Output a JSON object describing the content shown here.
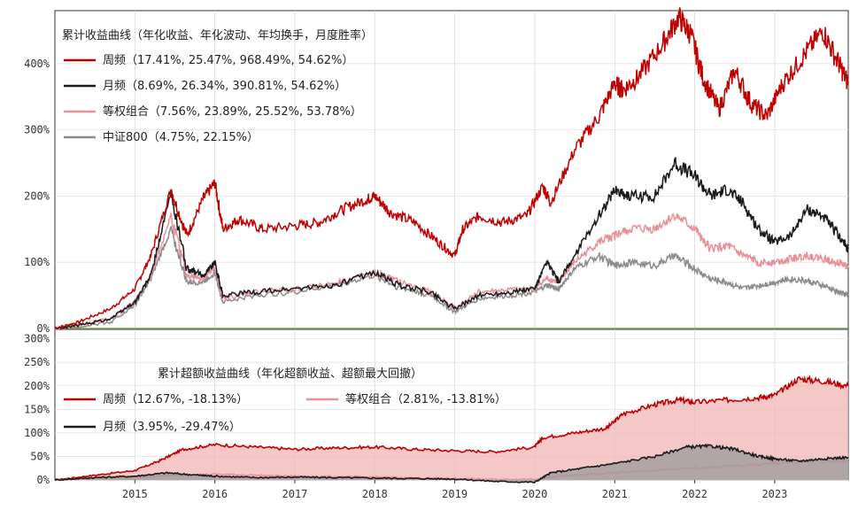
{
  "chart_data": [
    {
      "type": "line",
      "title": "",
      "xlabel": "",
      "ylabel": "",
      "x_tick_labels": [
        "2015",
        "2016",
        "2017",
        "2018",
        "2019",
        "2020",
        "2021",
        "2022",
        "2023"
      ],
      "y_ticks": [
        0,
        100,
        200,
        300,
        400
      ],
      "y_tick_labels": [
        "0%",
        "100%",
        "200%",
        "300%",
        "400%"
      ],
      "ylim": [
        0,
        480
      ],
      "xlim": [
        2014.0,
        2023.92
      ],
      "grid": true,
      "legend_title": "累计收益曲线（年化收益、年化波动、年均换手，月度胜率）",
      "legend_position": "top-left",
      "zero_line_color": "#6aa84f",
      "series": [
        {
          "name": "周频",
          "legend_label": "周频（17.41%, 25.47%, 968.49%, 54.62%）",
          "color": "#c00000",
          "x": [
            2014.0,
            2014.3,
            2014.7,
            2015.0,
            2015.2,
            2015.45,
            2015.65,
            2015.85,
            2016.0,
            2016.1,
            2016.3,
            2016.6,
            2017.0,
            2017.3,
            2017.6,
            2017.9,
            2018.0,
            2018.2,
            2018.5,
            2018.8,
            2019.0,
            2019.1,
            2019.3,
            2019.6,
            2019.9,
            2020.1,
            2020.2,
            2020.5,
            2020.8,
            2021.0,
            2021.1,
            2021.3,
            2021.6,
            2021.8,
            2021.95,
            2022.1,
            2022.3,
            2022.5,
            2022.7,
            2022.9,
            2023.1,
            2023.35,
            2023.6,
            2023.8,
            2023.92
          ],
          "y": [
            0,
            10,
            30,
            60,
            110,
            210,
            140,
            195,
            220,
            150,
            165,
            150,
            155,
            160,
            180,
            195,
            200,
            175,
            160,
            130,
            110,
            150,
            170,
            160,
            170,
            215,
            190,
            270,
            320,
            370,
            360,
            380,
            430,
            470,
            445,
            380,
            330,
            390,
            340,
            320,
            370,
            410,
            450,
            400,
            370
          ]
        },
        {
          "name": "月频",
          "legend_label": "月频（8.69%, 26.34%, 390.81%, 54.62%）",
          "color": "#1a1a1a",
          "x": [
            2014.0,
            2014.3,
            2014.7,
            2015.0,
            2015.2,
            2015.45,
            2015.65,
            2015.85,
            2016.0,
            2016.1,
            2016.5,
            2017.0,
            2017.5,
            2018.0,
            2018.3,
            2018.7,
            2019.0,
            2019.3,
            2019.7,
            2020.0,
            2020.15,
            2020.3,
            2020.5,
            2020.8,
            2021.0,
            2021.2,
            2021.5,
            2021.75,
            2022.0,
            2022.2,
            2022.4,
            2022.6,
            2022.8,
            2023.0,
            2023.2,
            2023.4,
            2023.6,
            2023.8,
            2023.92
          ],
          "y": [
            0,
            5,
            15,
            40,
            80,
            205,
            90,
            80,
            100,
            50,
            55,
            60,
            65,
            85,
            65,
            55,
            30,
            50,
            55,
            60,
            100,
            70,
            110,
            170,
            210,
            200,
            200,
            250,
            230,
            200,
            210,
            190,
            150,
            130,
            140,
            180,
            170,
            140,
            120
          ]
        },
        {
          "name": "等权组合",
          "legend_label": "等权组合（7.56%, 23.89%, 25.52%, 53.78%）",
          "color": "#e8909a",
          "x": [
            2014.0,
            2014.3,
            2014.7,
            2015.0,
            2015.2,
            2015.45,
            2015.65,
            2015.85,
            2016.0,
            2016.1,
            2016.5,
            2017.0,
            2017.5,
            2018.0,
            2018.3,
            2018.7,
            2019.0,
            2019.3,
            2019.7,
            2020.0,
            2020.15,
            2020.3,
            2020.5,
            2020.8,
            2021.0,
            2021.2,
            2021.5,
            2021.75,
            2022.0,
            2022.2,
            2022.4,
            2022.6,
            2022.8,
            2023.0,
            2023.2,
            2023.4,
            2023.6,
            2023.8,
            2023.92
          ],
          "y": [
            0,
            5,
            15,
            40,
            80,
            170,
            80,
            75,
            90,
            45,
            55,
            60,
            68,
            85,
            70,
            55,
            30,
            55,
            58,
            60,
            75,
            70,
            100,
            130,
            140,
            150,
            150,
            170,
            150,
            120,
            125,
            110,
            100,
            100,
            105,
            110,
            105,
            100,
            92
          ]
        },
        {
          "name": "中证800",
          "legend_label": "中证800（4.75%, 22.15%）",
          "color": "#8c8c8c",
          "x": [
            2014.0,
            2014.3,
            2014.7,
            2015.0,
            2015.2,
            2015.45,
            2015.65,
            2015.85,
            2016.0,
            2016.1,
            2016.5,
            2017.0,
            2017.5,
            2018.0,
            2018.3,
            2018.7,
            2019.0,
            2019.3,
            2019.7,
            2020.0,
            2020.15,
            2020.3,
            2020.5,
            2020.8,
            2021.0,
            2021.2,
            2021.5,
            2021.75,
            2022.0,
            2022.2,
            2022.4,
            2022.6,
            2022.8,
            2023.0,
            2023.2,
            2023.4,
            2023.6,
            2023.8,
            2023.92
          ],
          "y": [
            0,
            3,
            10,
            35,
            75,
            150,
            70,
            70,
            85,
            40,
            50,
            55,
            65,
            80,
            62,
            50,
            25,
            45,
            50,
            55,
            65,
            60,
            90,
            110,
            95,
            100,
            95,
            110,
            90,
            75,
            70,
            60,
            65,
            70,
            75,
            72,
            65,
            55,
            50
          ]
        }
      ]
    },
    {
      "type": "area",
      "title": "",
      "xlabel": "",
      "ylabel": "",
      "y_ticks": [
        0,
        50,
        100,
        150,
        200,
        250,
        300
      ],
      "y_tick_labels": [
        "0%",
        "50%",
        "100%",
        "150%",
        "200%",
        "250%",
        "300%"
      ],
      "ylim": [
        0,
        320
      ],
      "xlim": [
        2014.0,
        2023.92
      ],
      "legend_title": "累计超额收益曲线（年化超额收益、超额最大回撤）",
      "legend_position": "top",
      "series": [
        {
          "name": "周频",
          "legend_label": "周频（12.67%, -18.13%）",
          "color": "#c00000",
          "fill": "#f2b5b5",
          "x": [
            2014.0,
            2014.5,
            2015.0,
            2015.3,
            2015.6,
            2016.0,
            2016.5,
            2017.0,
            2017.5,
            2018.0,
            2018.5,
            2019.0,
            2019.5,
            2020.0,
            2020.1,
            2020.5,
            2020.9,
            2021.1,
            2021.5,
            2021.8,
            2022.0,
            2022.4,
            2022.8,
            2023.0,
            2023.3,
            2023.6,
            2023.92
          ],
          "y": [
            0,
            10,
            20,
            40,
            65,
            75,
            70,
            65,
            68,
            70,
            65,
            62,
            60,
            70,
            90,
            100,
            110,
            140,
            160,
            170,
            165,
            170,
            175,
            180,
            215,
            210,
            200
          ]
        },
        {
          "name": "月频",
          "legend_label": "月频（3.95%, -29.47%）",
          "color": "#1a1a1a",
          "fill": "#9a9a9a",
          "x": [
            2014.0,
            2014.5,
            2015.0,
            2015.4,
            2015.8,
            2016.0,
            2016.5,
            2017.0,
            2017.5,
            2018.0,
            2018.5,
            2019.0,
            2019.5,
            2020.0,
            2020.2,
            2020.6,
            2021.0,
            2021.5,
            2021.9,
            2022.2,
            2022.5,
            2022.8,
            2023.0,
            2023.3,
            2023.6,
            2023.92
          ],
          "y": [
            0,
            5,
            8,
            15,
            10,
            8,
            5,
            6,
            5,
            4,
            3,
            2,
            -3,
            -5,
            15,
            25,
            35,
            50,
            70,
            72,
            65,
            50,
            45,
            40,
            45,
            48
          ]
        },
        {
          "name": "等权组合",
          "legend_label": "等权组合（2.81%, -13.81%）",
          "color": "#e8909a",
          "fill": "#f4c7cc",
          "x": [
            2014.0,
            2014.5,
            2015.0,
            2015.5,
            2016.0,
            2016.5,
            2017.0,
            2017.5,
            2018.0,
            2018.5,
            2019.0,
            2019.5,
            2020.0,
            2020.3,
            2020.7,
            2021.0,
            2021.5,
            2022.0,
            2022.5,
            2023.0,
            2023.5,
            2023.92
          ],
          "y": [
            0,
            3,
            6,
            10,
            12,
            10,
            8,
            7,
            6,
            4,
            3,
            1,
            2,
            8,
            12,
            15,
            20,
            25,
            30,
            35,
            40,
            40
          ]
        }
      ]
    }
  ]
}
